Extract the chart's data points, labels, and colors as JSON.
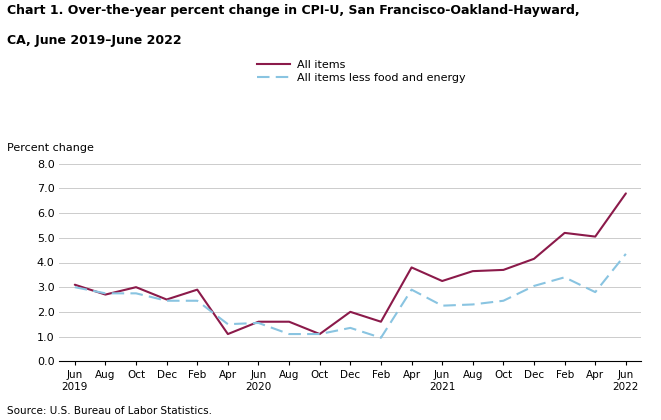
{
  "title_line1": "Chart 1. Over-the-year percent change in CPI-U, San Francisco-Oakland-Hayward,",
  "title_line2": "CA, June 2019–June 2022",
  "ylabel": "Percent change",
  "source": "Source: U.S. Bureau of Labor Statistics.",
  "ylim": [
    0.0,
    8.0
  ],
  "yticks": [
    0.0,
    1.0,
    2.0,
    3.0,
    4.0,
    5.0,
    6.0,
    7.0,
    8.0
  ],
  "legend_labels": [
    "All items",
    "All items less food and energy"
  ],
  "all_items_color": "#8B1A4A",
  "core_color": "#89C4E1",
  "x_labels": [
    "Jun\n2019",
    "Aug",
    "Oct",
    "Dec",
    "Feb",
    "Apr",
    "Jun\n2020",
    "Aug",
    "Oct",
    "Dec",
    "Feb",
    "Apr",
    "Jun\n2021",
    "Aug",
    "Oct",
    "Dec",
    "Feb",
    "Apr",
    "Jun\n2022"
  ],
  "all_items": [
    3.1,
    2.7,
    3.0,
    2.5,
    2.9,
    1.1,
    1.6,
    1.6,
    1.1,
    2.0,
    1.6,
    3.8,
    3.25,
    3.65,
    3.7,
    4.15,
    5.2,
    5.05,
    6.8
  ],
  "core": [
    3.0,
    2.75,
    2.75,
    2.45,
    2.45,
    1.5,
    1.55,
    1.1,
    1.1,
    1.35,
    0.95,
    2.9,
    2.25,
    2.3,
    2.45,
    3.05,
    3.4,
    2.8,
    4.35
  ]
}
